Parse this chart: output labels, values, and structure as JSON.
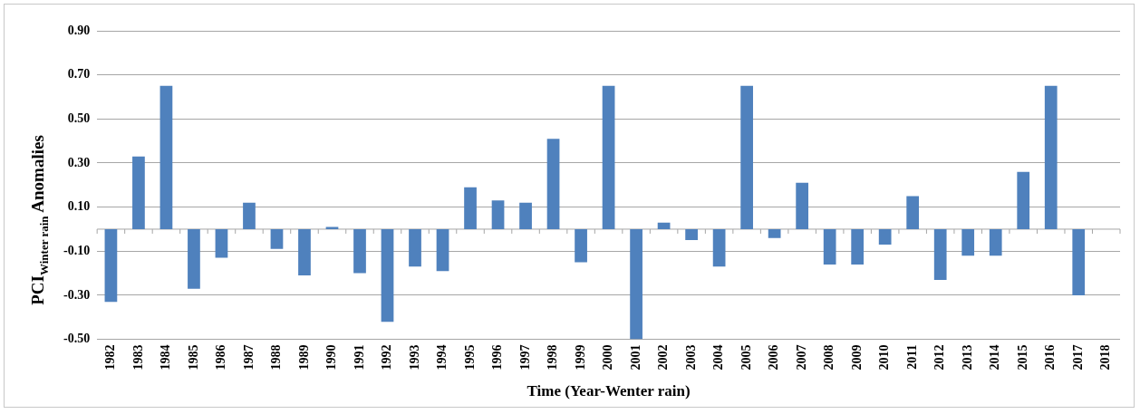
{
  "chart_data": {
    "type": "bar",
    "xlabel": "Time (Year-Wenter rain)",
    "ylabel": "PCI$_{Winter rain}$ Anomalies",
    "categories": [
      "1982",
      "1983",
      "1984",
      "1985",
      "1986",
      "1987",
      "1988",
      "1989",
      "1990",
      "1991",
      "1992",
      "1993",
      "1994",
      "1995",
      "1996",
      "1997",
      "1998",
      "1999",
      "2000",
      "2001",
      "2002",
      "2003",
      "2004",
      "2005",
      "2006",
      "2007",
      "2008",
      "2009",
      "2010",
      "2011",
      "2012",
      "2013",
      "2014",
      "2015",
      "2016",
      "2017",
      "2018"
    ],
    "values": [
      -0.33,
      0.33,
      0.65,
      -0.27,
      -0.13,
      0.12,
      -0.09,
      -0.21,
      0.01,
      -0.2,
      -0.42,
      -0.17,
      -0.19,
      0.19,
      0.13,
      0.12,
      0.41,
      -0.15,
      0.65,
      -0.5,
      0.03,
      -0.05,
      -0.17,
      0.65,
      -0.04,
      0.21,
      -0.16,
      -0.16,
      -0.07,
      0.15,
      -0.23,
      -0.12,
      -0.12,
      0.26,
      0.65,
      -0.3,
      null
    ],
    "color": "#4f81bd",
    "ylim": [
      -0.5,
      0.9
    ],
    "yticks": [
      {
        "value": -0.5,
        "label": "-0.50"
      },
      {
        "value": -0.3,
        "label": "-0.30"
      },
      {
        "value": -0.1,
        "label": "-0.10"
      },
      {
        "value": 0.1,
        "label": "0.10"
      },
      {
        "value": 0.3,
        "label": "0.30"
      },
      {
        "value": 0.5,
        "label": "0.50"
      },
      {
        "value": 0.7,
        "label": "0.70"
      },
      {
        "value": 0.9,
        "label": "0.90"
      }
    ],
    "grid": "y",
    "legend": false
  }
}
